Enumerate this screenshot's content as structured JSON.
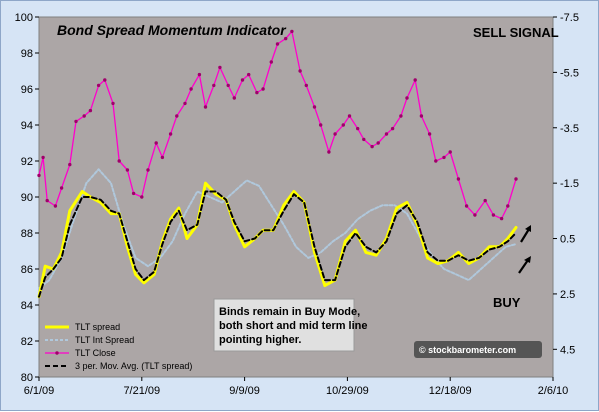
{
  "chart_data": {
    "type": "line",
    "title": "Bond Spread Momentum Indicator",
    "x_tick_labels": [
      "6/1/09",
      "7/21/09",
      "9/9/09",
      "10/29/09",
      "12/18/09",
      "2/6/10"
    ],
    "x_range": [
      "2009-06-01",
      "2010-02-06"
    ],
    "y_left_ticks": [
      80,
      82,
      84,
      86,
      88,
      90,
      92,
      94,
      96,
      98,
      100
    ],
    "ylim_left": [
      80,
      100
    ],
    "y_right_ticks": [
      -7.5,
      -5.5,
      -3.5,
      -1.5,
      0.5,
      2.5,
      4.5
    ],
    "ylim_right": [
      5.5,
      -7.5
    ],
    "y_right_inverted": true,
    "grid": false,
    "legend_position": "bottom-left",
    "series": [
      {
        "name": "TLT spread",
        "axis": "right",
        "color": "#ffff00",
        "x": [
          "2009-06-01",
          "2009-06-04",
          "2009-06-08",
          "2009-06-12",
          "2009-06-16",
          "2009-06-22",
          "2009-06-26",
          "2009-07-01",
          "2009-07-06",
          "2009-07-10",
          "2009-07-14",
          "2009-07-18",
          "2009-07-22",
          "2009-07-27",
          "2009-07-31",
          "2009-08-04",
          "2009-08-08",
          "2009-08-12",
          "2009-08-17",
          "2009-08-21",
          "2009-08-26",
          "2009-08-31",
          "2009-09-04",
          "2009-09-09",
          "2009-09-14",
          "2009-09-18",
          "2009-09-23",
          "2009-09-28",
          "2009-10-03",
          "2009-10-08",
          "2009-10-13",
          "2009-10-18",
          "2009-10-23",
          "2009-10-28",
          "2009-11-02",
          "2009-11-07",
          "2009-11-12",
          "2009-11-17",
          "2009-11-22",
          "2009-11-27",
          "2009-12-02",
          "2009-12-07",
          "2009-12-12",
          "2009-12-17",
          "2009-12-22",
          "2009-12-27",
          "2010-01-01",
          "2010-01-06",
          "2010-01-11",
          "2010-01-15",
          "2010-01-19"
        ],
        "values": [
          2.6,
          1.5,
          1.6,
          1.0,
          -0.5,
          -1.2,
          -1.0,
          -0.8,
          -0.4,
          -0.4,
          0.8,
          1.8,
          2.1,
          1.8,
          0.6,
          -0.2,
          -0.6,
          0.5,
          0.0,
          -1.5,
          -1.1,
          -0.9,
          0.0,
          0.8,
          0.5,
          0.2,
          0.2,
          -0.7,
          -1.2,
          -0.8,
          1.0,
          2.2,
          2.0,
          0.6,
          0.2,
          1.0,
          1.1,
          0.5,
          -0.6,
          -0.8,
          0.0,
          1.2,
          1.4,
          1.3,
          1.0,
          1.4,
          1.2,
          0.8,
          0.8,
          0.5,
          0.1
        ]
      },
      {
        "name": "TLT Int Spread",
        "axis": "right",
        "color": "#b0c8dc",
        "x": [
          "2009-06-01",
          "2009-06-06",
          "2009-06-12",
          "2009-06-18",
          "2009-06-24",
          "2009-06-30",
          "2009-07-06",
          "2009-07-12",
          "2009-07-18",
          "2009-07-24",
          "2009-07-30",
          "2009-08-05",
          "2009-08-11",
          "2009-08-17",
          "2009-08-23",
          "2009-08-29",
          "2009-09-04",
          "2009-09-10",
          "2009-09-16",
          "2009-09-22",
          "2009-09-28",
          "2009-10-04",
          "2009-10-10",
          "2009-10-16",
          "2009-10-22",
          "2009-10-28",
          "2009-11-03",
          "2009-11-09",
          "2009-11-15",
          "2009-11-21",
          "2009-11-27",
          "2009-12-03",
          "2009-12-09",
          "2009-12-15",
          "2009-12-21",
          "2009-12-27",
          "2010-01-02",
          "2010-01-08",
          "2010-01-14",
          "2010-01-19"
        ],
        "values": [
          2.3,
          2.0,
          1.2,
          -0.2,
          -1.5,
          -2.0,
          -1.5,
          0.0,
          1.2,
          1.5,
          1.2,
          0.6,
          -0.4,
          -1.2,
          -1.0,
          -0.8,
          -1.2,
          -1.6,
          -1.4,
          -0.7,
          0.0,
          0.8,
          1.2,
          1.0,
          0.6,
          0.3,
          -0.2,
          -0.5,
          -0.7,
          -0.7,
          -0.4,
          0.4,
          1.1,
          1.6,
          1.8,
          2.0,
          1.6,
          1.2,
          0.8,
          0.7
        ]
      },
      {
        "name": "TLT Close",
        "axis": "left",
        "color": "#ff00cc",
        "x": [
          "2009-06-01",
          "2009-06-03",
          "2009-06-05",
          "2009-06-09",
          "2009-06-12",
          "2009-06-16",
          "2009-06-19",
          "2009-06-23",
          "2009-06-26",
          "2009-06-30",
          "2009-07-03",
          "2009-07-07",
          "2009-07-10",
          "2009-07-14",
          "2009-07-17",
          "2009-07-21",
          "2009-07-24",
          "2009-07-28",
          "2009-07-31",
          "2009-08-04",
          "2009-08-07",
          "2009-08-11",
          "2009-08-14",
          "2009-08-18",
          "2009-08-21",
          "2009-08-25",
          "2009-08-28",
          "2009-09-01",
          "2009-09-04",
          "2009-09-08",
          "2009-09-11",
          "2009-09-15",
          "2009-09-18",
          "2009-09-22",
          "2009-09-25",
          "2009-09-29",
          "2009-10-02",
          "2009-10-06",
          "2009-10-09",
          "2009-10-13",
          "2009-10-16",
          "2009-10-20",
          "2009-10-23",
          "2009-10-27",
          "2009-10-30",
          "2009-11-03",
          "2009-11-06",
          "2009-11-10",
          "2009-11-13",
          "2009-11-17",
          "2009-11-20",
          "2009-11-24",
          "2009-11-27",
          "2009-12-01",
          "2009-12-04",
          "2009-12-08",
          "2009-12-11",
          "2009-12-15",
          "2009-12-18",
          "2009-12-22",
          "2009-12-26",
          "2009-12-30",
          "2010-01-04",
          "2010-01-08",
          "2010-01-12",
          "2010-01-15",
          "2010-01-19"
        ],
        "values": [
          91.2,
          92.2,
          89.8,
          89.5,
          90.5,
          91.8,
          94.2,
          94.5,
          94.8,
          96.2,
          96.5,
          95.2,
          92.0,
          91.5,
          90.2,
          90.0,
          91.5,
          93.0,
          92.2,
          93.5,
          94.5,
          95.2,
          96.0,
          96.8,
          95.0,
          96.2,
          97.2,
          96.2,
          95.5,
          96.5,
          96.8,
          95.8,
          96.0,
          97.5,
          98.5,
          98.8,
          99.2,
          97.0,
          96.2,
          95.0,
          94.0,
          92.5,
          93.5,
          94.0,
          94.5,
          93.8,
          93.2,
          92.8,
          93.0,
          93.5,
          93.8,
          94.5,
          95.5,
          96.5,
          94.5,
          93.5,
          92.0,
          92.2,
          92.5,
          91.0,
          89.5,
          89.0,
          89.8,
          89.0,
          88.8,
          89.5,
          91.0
        ]
      },
      {
        "name": "3 per. Mov. Avg. (TLT spread)",
        "axis": "right",
        "color": "#000000",
        "x": [
          "2009-06-01",
          "2009-06-04",
          "2009-06-08",
          "2009-06-12",
          "2009-06-16",
          "2009-06-22",
          "2009-06-26",
          "2009-07-01",
          "2009-07-06",
          "2009-07-10",
          "2009-07-14",
          "2009-07-18",
          "2009-07-22",
          "2009-07-27",
          "2009-07-31",
          "2009-08-04",
          "2009-08-08",
          "2009-08-12",
          "2009-08-17",
          "2009-08-21",
          "2009-08-26",
          "2009-08-31",
          "2009-09-04",
          "2009-09-09",
          "2009-09-14",
          "2009-09-18",
          "2009-09-23",
          "2009-09-28",
          "2009-10-03",
          "2009-10-08",
          "2009-10-13",
          "2009-10-18",
          "2009-10-23",
          "2009-10-28",
          "2009-11-02",
          "2009-11-07",
          "2009-11-12",
          "2009-11-17",
          "2009-11-22",
          "2009-11-27",
          "2009-12-02",
          "2009-12-07",
          "2009-12-12",
          "2009-12-17",
          "2009-12-22",
          "2009-12-27",
          "2010-01-01",
          "2010-01-06",
          "2010-01-11",
          "2010-01-15",
          "2010-01-19"
        ],
        "values": [
          2.6,
          1.9,
          1.6,
          1.2,
          0.0,
          -1.0,
          -1.0,
          -0.9,
          -0.5,
          -0.4,
          0.6,
          1.6,
          2.0,
          1.7,
          0.7,
          -0.1,
          -0.5,
          0.2,
          0.0,
          -1.2,
          -1.2,
          -0.9,
          -0.1,
          0.6,
          0.5,
          0.2,
          0.2,
          -0.5,
          -1.1,
          -0.8,
          0.8,
          2.0,
          2.0,
          0.8,
          0.3,
          0.8,
          1.0,
          0.6,
          -0.4,
          -0.7,
          -0.1,
          1.0,
          1.3,
          1.3,
          1.1,
          1.3,
          1.2,
          0.9,
          0.8,
          0.6,
          0.3
        ]
      }
    ],
    "annotations": {
      "signal": "SELL SIGNAL",
      "buy": "BUY",
      "note_lines": [
        "Binds remain in Buy Mode,",
        "both short and mid term line",
        "pointing higher."
      ],
      "watermark": "© stockbarometer.com"
    }
  }
}
